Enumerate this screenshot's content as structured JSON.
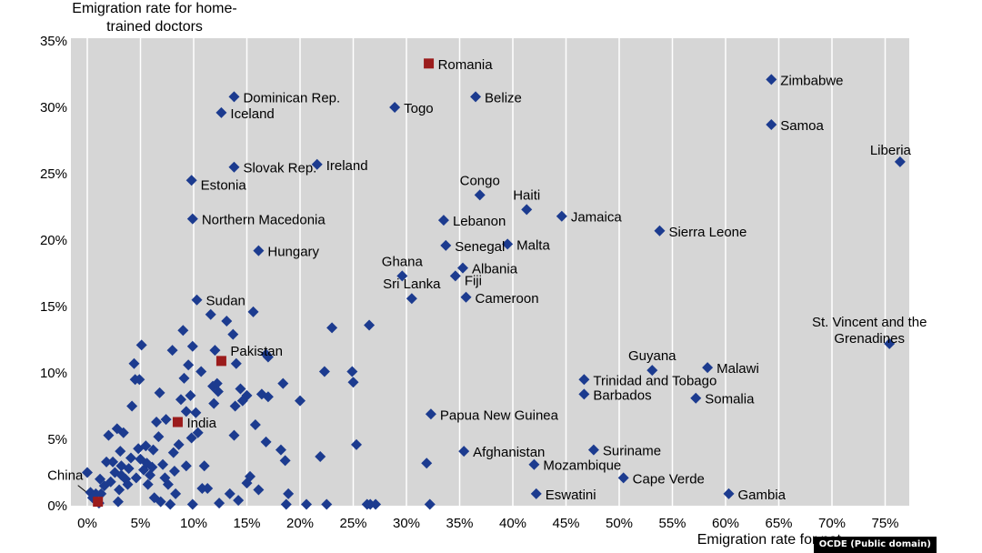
{
  "chart_data": {
    "type": "scatter",
    "ylabel": "Emigration rate for home-\ntrained doctors",
    "xlabel": "Emigration rate for nat",
    "credit": "OCDE (Public domain)",
    "xlim": [
      0,
      80
    ],
    "ylim": [
      0,
      35
    ],
    "xticks": [
      {
        "v": 0,
        "label": "0%"
      },
      {
        "v": 5,
        "label": "5%"
      },
      {
        "v": 10,
        "label": "10%"
      },
      {
        "v": 15,
        "label": "15%"
      },
      {
        "v": 20,
        "label": "20%"
      },
      {
        "v": 25,
        "label": "25%"
      },
      {
        "v": 30,
        "label": "30%"
      },
      {
        "v": 35,
        "label": "35%"
      },
      {
        "v": 40,
        "label": "40%"
      },
      {
        "v": 45,
        "label": "45%"
      },
      {
        "v": 50,
        "label": "50%"
      },
      {
        "v": 55,
        "label": "55%"
      },
      {
        "v": 60,
        "label": "60%"
      },
      {
        "v": 65,
        "label": "65%"
      },
      {
        "v": 70,
        "label": "70%"
      },
      {
        "v": 75,
        "label": "75%"
      }
    ],
    "yticks": [
      {
        "v": 0,
        "label": "0%"
      },
      {
        "v": 5,
        "label": "5%"
      },
      {
        "v": 10,
        "label": "10%"
      },
      {
        "v": 15,
        "label": "15%"
      },
      {
        "v": 20,
        "label": "20%"
      },
      {
        "v": 25,
        "label": "25%"
      },
      {
        "v": 30,
        "label": "30%"
      },
      {
        "v": 35,
        "label": "35%"
      }
    ],
    "grid": "vertical",
    "colors": {
      "point": "#1c3b8f",
      "highlight": "#9b1c1c",
      "grid": "#ffffff",
      "background": "#d6d6d6"
    },
    "labeled_points": [
      {
        "name": "Romania",
        "x": 32.1,
        "y": 33.3,
        "highlight": true,
        "anchor": "right"
      },
      {
        "name": "Zimbabwe",
        "x": 64.3,
        "y": 32.1,
        "anchor": "right"
      },
      {
        "name": "Dominican Rep.",
        "x": 13.8,
        "y": 30.8,
        "anchor": "right"
      },
      {
        "name": "Belize",
        "x": 36.5,
        "y": 30.8,
        "anchor": "right"
      },
      {
        "name": "Iceland",
        "x": 12.6,
        "y": 29.6,
        "anchor": "right"
      },
      {
        "name": "Togo",
        "x": 28.9,
        "y": 30.0,
        "anchor": "right"
      },
      {
        "name": "Samoa",
        "x": 64.3,
        "y": 28.7,
        "anchor": "right"
      },
      {
        "name": "Liberia",
        "x": 76.4,
        "y": 25.9,
        "anchor": "above-left"
      },
      {
        "name": "Slovak Rep.",
        "x": 13.8,
        "y": 25.5,
        "anchor": "right"
      },
      {
        "name": "Ireland",
        "x": 21.6,
        "y": 25.7,
        "anchor": "right"
      },
      {
        "name": "Estonia",
        "x": 9.8,
        "y": 24.5,
        "anchor": "right-below"
      },
      {
        "name": "Congo",
        "x": 36.9,
        "y": 23.4,
        "anchor": "above"
      },
      {
        "name": "Haiti",
        "x": 41.3,
        "y": 22.3,
        "anchor": "above"
      },
      {
        "name": "Jamaica",
        "x": 44.6,
        "y": 21.8,
        "anchor": "right"
      },
      {
        "name": "Northern Macedonia",
        "x": 9.9,
        "y": 21.6,
        "anchor": "right"
      },
      {
        "name": "Lebanon",
        "x": 33.5,
        "y": 21.5,
        "anchor": "right"
      },
      {
        "name": "Sierra Leone",
        "x": 53.8,
        "y": 20.7,
        "anchor": "right"
      },
      {
        "name": "Senegal",
        "x": 33.7,
        "y": 19.6,
        "anchor": "right"
      },
      {
        "name": "Malta",
        "x": 39.5,
        "y": 19.7,
        "anchor": "right"
      },
      {
        "name": "Hungary",
        "x": 16.1,
        "y": 19.2,
        "anchor": "right"
      },
      {
        "name": "Ghana",
        "x": 29.6,
        "y": 17.3,
        "anchor": "above"
      },
      {
        "name": "Albania",
        "x": 35.3,
        "y": 17.9,
        "anchor": "right"
      },
      {
        "name": "Fiji",
        "x": 34.6,
        "y": 17.3,
        "anchor": "right-below"
      },
      {
        "name": "Sri Lanka",
        "x": 30.5,
        "y": 15.6,
        "anchor": "above"
      },
      {
        "name": "Cameroon",
        "x": 35.6,
        "y": 15.7,
        "anchor": "right"
      },
      {
        "name": "Sudan",
        "x": 10.3,
        "y": 15.5,
        "anchor": "right"
      },
      {
        "name": "St. Vincent and the\nGrenadines",
        "x": 75.4,
        "y": 12.2,
        "anchor": "above-multiline"
      },
      {
        "name": "Pakistan",
        "x": 12.6,
        "y": 10.9,
        "highlight": true,
        "anchor": "right-above"
      },
      {
        "name": "Guyana",
        "x": 53.1,
        "y": 10.2,
        "anchor": "above"
      },
      {
        "name": "Malawi",
        "x": 58.3,
        "y": 10.4,
        "anchor": "right"
      },
      {
        "name": "Trinidad and Tobago",
        "x": 46.7,
        "y": 9.5,
        "anchor": "right"
      },
      {
        "name": "Barbados",
        "x": 46.7,
        "y": 8.4,
        "anchor": "right"
      },
      {
        "name": "Somalia",
        "x": 57.2,
        "y": 8.1,
        "anchor": "right"
      },
      {
        "name": "Papua New Guinea",
        "x": 32.3,
        "y": 6.9,
        "anchor": "right"
      },
      {
        "name": "India",
        "x": 8.5,
        "y": 6.3,
        "highlight": true,
        "anchor": "right"
      },
      {
        "name": "Afghanistan",
        "x": 35.4,
        "y": 4.1,
        "anchor": "right"
      },
      {
        "name": "Suriname",
        "x": 47.6,
        "y": 4.2,
        "anchor": "right"
      },
      {
        "name": "Mozambique",
        "x": 42.0,
        "y": 3.1,
        "anchor": "right"
      },
      {
        "name": "Cape Verde",
        "x": 50.4,
        "y": 2.1,
        "anchor": "right"
      },
      {
        "name": "Eswatini",
        "x": 42.2,
        "y": 0.9,
        "anchor": "right"
      },
      {
        "name": "Gambia",
        "x": 60.3,
        "y": 0.9,
        "anchor": "right"
      },
      {
        "name": "China",
        "x": 1.0,
        "y": 0.3,
        "highlight": true,
        "anchor": "china"
      }
    ],
    "other_points": [
      [
        0.0,
        2.5
      ],
      [
        0.3,
        1.0
      ],
      [
        0.5,
        0.6
      ],
      [
        0.8,
        0.9
      ],
      [
        1.1,
        0.2
      ],
      [
        1.2,
        2.0
      ],
      [
        1.3,
        0.9
      ],
      [
        1.6,
        1.5
      ],
      [
        1.8,
        3.3
      ],
      [
        2.0,
        5.3
      ],
      [
        2.2,
        1.8
      ],
      [
        2.4,
        3.3
      ],
      [
        2.6,
        2.5
      ],
      [
        2.8,
        5.8
      ],
      [
        2.9,
        0.3
      ],
      [
        3.0,
        1.2
      ],
      [
        3.1,
        4.1
      ],
      [
        3.2,
        3.0
      ],
      [
        3.2,
        2.3
      ],
      [
        3.4,
        5.5
      ],
      [
        3.6,
        2.0
      ],
      [
        3.8,
        1.6
      ],
      [
        3.9,
        2.8
      ],
      [
        4.1,
        3.6
      ],
      [
        4.2,
        7.5
      ],
      [
        4.4,
        10.7
      ],
      [
        4.5,
        9.5
      ],
      [
        4.6,
        2.1
      ],
      [
        4.8,
        4.3
      ],
      [
        4.9,
        9.5
      ],
      [
        5.0,
        3.5
      ],
      [
        5.1,
        12.1
      ],
      [
        5.3,
        2.7
      ],
      [
        5.5,
        4.5
      ],
      [
        5.6,
        3.2
      ],
      [
        5.7,
        1.6
      ],
      [
        5.9,
        2.3
      ],
      [
        6.1,
        2.9
      ],
      [
        6.2,
        4.2
      ],
      [
        6.3,
        0.6
      ],
      [
        6.5,
        6.3
      ],
      [
        6.7,
        5.2
      ],
      [
        6.8,
        8.5
      ],
      [
        6.9,
        0.3
      ],
      [
        7.1,
        3.1
      ],
      [
        7.3,
        2.1
      ],
      [
        7.4,
        6.5
      ],
      [
        7.6,
        1.6
      ],
      [
        7.8,
        0.1
      ],
      [
        8.0,
        11.7
      ],
      [
        8.1,
        4.0
      ],
      [
        8.2,
        2.6
      ],
      [
        8.3,
        0.9
      ],
      [
        8.6,
        4.6
      ],
      [
        8.8,
        8.0
      ],
      [
        9.0,
        13.2
      ],
      [
        9.1,
        9.6
      ],
      [
        9.3,
        3.0
      ],
      [
        9.3,
        7.1
      ],
      [
        9.5,
        10.6
      ],
      [
        9.7,
        8.3
      ],
      [
        9.8,
        5.1
      ],
      [
        9.9,
        12.0
      ],
      [
        9.9,
        0.1
      ],
      [
        10.2,
        7.0
      ],
      [
        10.4,
        5.5
      ],
      [
        10.7,
        10.1
      ],
      [
        10.8,
        1.3
      ],
      [
        11.0,
        3.0
      ],
      [
        11.3,
        1.3
      ],
      [
        11.6,
        14.4
      ],
      [
        11.8,
        9.0
      ],
      [
        11.9,
        7.7
      ],
      [
        12.0,
        11.7
      ],
      [
        12.2,
        9.2
      ],
      [
        12.3,
        8.6
      ],
      [
        12.4,
        0.2
      ],
      [
        13.1,
        13.9
      ],
      [
        13.4,
        0.9
      ],
      [
        13.7,
        12.9
      ],
      [
        13.8,
        5.3
      ],
      [
        13.9,
        7.5
      ],
      [
        14.0,
        10.7
      ],
      [
        14.2,
        0.4
      ],
      [
        14.4,
        8.8
      ],
      [
        14.6,
        7.9
      ],
      [
        15.0,
        8.3
      ],
      [
        15.0,
        1.7
      ],
      [
        15.3,
        2.2
      ],
      [
        15.6,
        14.6
      ],
      [
        15.8,
        6.1
      ],
      [
        16.1,
        1.2
      ],
      [
        16.4,
        8.4
      ],
      [
        16.8,
        11.4
      ],
      [
        16.8,
        4.8
      ],
      [
        17.0,
        11.2
      ],
      [
        17.0,
        8.2
      ],
      [
        18.2,
        4.2
      ],
      [
        18.4,
        9.2
      ],
      [
        18.6,
        3.4
      ],
      [
        18.7,
        0.1
      ],
      [
        18.9,
        0.9
      ],
      [
        20.0,
        7.9
      ],
      [
        20.6,
        0.1
      ],
      [
        21.9,
        3.7
      ],
      [
        22.3,
        10.1
      ],
      [
        22.5,
        0.1
      ],
      [
        23.0,
        13.4
      ],
      [
        24.9,
        10.1
      ],
      [
        25.0,
        9.3
      ],
      [
        25.3,
        4.6
      ],
      [
        26.3,
        0.1
      ],
      [
        26.5,
        13.6
      ],
      [
        26.6,
        0.1
      ],
      [
        27.1,
        0.1
      ],
      [
        31.9,
        3.2
      ],
      [
        32.2,
        0.1
      ]
    ]
  }
}
